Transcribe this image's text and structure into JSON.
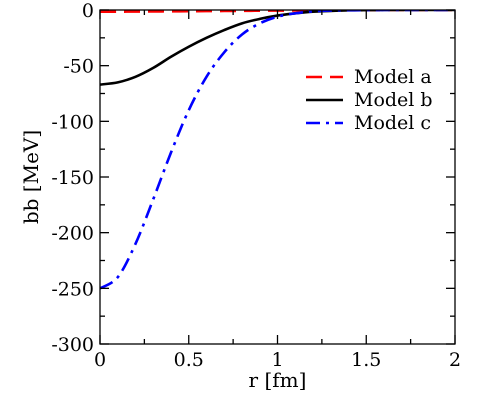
{
  "chart_data": {
    "type": "line",
    "xlabel": "r [fm]",
    "ylabel": "bb [MeV]",
    "xlim": [
      0,
      2
    ],
    "ylim": [
      -300,
      0
    ],
    "xticks": [
      0,
      0.5,
      1,
      1.5,
      2
    ],
    "yticks": [
      0,
      -50,
      -100,
      -150,
      -200,
      -250,
      -300
    ],
    "xtick_labels": [
      "0",
      "0.5",
      "1",
      "1.5",
      "2"
    ],
    "ytick_labels": [
      "0",
      "-50",
      "-100",
      "-150",
      "-200",
      "-250",
      "-300"
    ],
    "grid": false,
    "legend_position": "top-right",
    "x": [
      0,
      0.1,
      0.2,
      0.3,
      0.4,
      0.5,
      0.6,
      0.7,
      0.8,
      0.9,
      1.0,
      1.1,
      1.2,
      1.3,
      1.4,
      1.5,
      1.6,
      1.7,
      1.8,
      1.9,
      2.0
    ],
    "series": [
      {
        "name": "Model a",
        "color": "#ff0000",
        "dash": "dashed",
        "values": [
          -1.5,
          -1.5,
          -1.4,
          -1.3,
          -1.2,
          -1.1,
          -1.0,
          -0.9,
          -0.8,
          -0.6,
          -0.5,
          -0.4,
          -0.3,
          -0.2,
          -0.1,
          -0.1,
          0,
          0,
          0,
          0,
          0
        ]
      },
      {
        "name": "Model b",
        "color": "#000000",
        "dash": "solid",
        "values": [
          -67,
          -65,
          -60,
          -52,
          -42,
          -33,
          -25,
          -18,
          -12,
          -8,
          -5,
          -3,
          -1.5,
          -0.8,
          -0.3,
          -0.1,
          0,
          0,
          0,
          0,
          0
        ]
      },
      {
        "name": "Model c",
        "color": "#0000ff",
        "dash": "dashdot",
        "values": [
          -250,
          -240,
          -210,
          -170,
          -128,
          -90,
          -60,
          -38,
          -22,
          -12,
          -6,
          -3,
          -1.2,
          -0.5,
          -0.2,
          -0.1,
          0,
          0,
          0,
          0,
          0
        ]
      }
    ]
  }
}
